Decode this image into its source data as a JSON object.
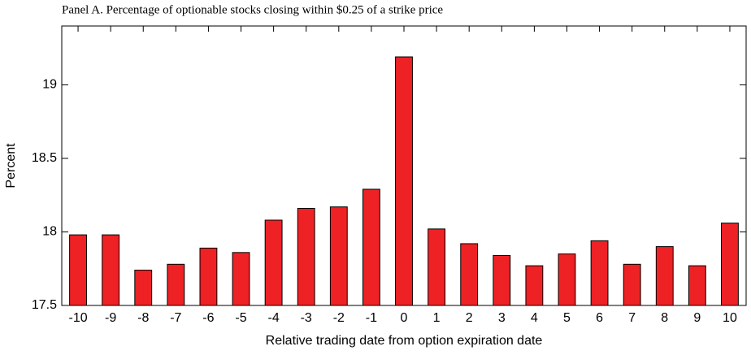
{
  "chart_data": {
    "type": "bar",
    "title": "Panel A.  Percentage of optionable stocks closing within $0.25 of a strike price",
    "x_label": "Relative trading date from option expiration date",
    "y_label": "Percent",
    "categories": [
      -10,
      -9,
      -8,
      -7,
      -6,
      -5,
      -4,
      -3,
      -2,
      -1,
      0,
      1,
      2,
      3,
      4,
      5,
      6,
      7,
      8,
      9,
      10
    ],
    "values": [
      17.98,
      17.98,
      17.74,
      17.78,
      17.89,
      17.86,
      18.08,
      18.16,
      18.17,
      18.29,
      19.19,
      18.02,
      17.92,
      17.84,
      17.77,
      17.85,
      17.94,
      17.78,
      17.9,
      17.77,
      18.06
    ],
    "color": "#ee2124",
    "ylim": [
      17.5,
      19.4
    ],
    "yticks": [
      17.5,
      18,
      18.5,
      19
    ],
    "grid": false
  }
}
